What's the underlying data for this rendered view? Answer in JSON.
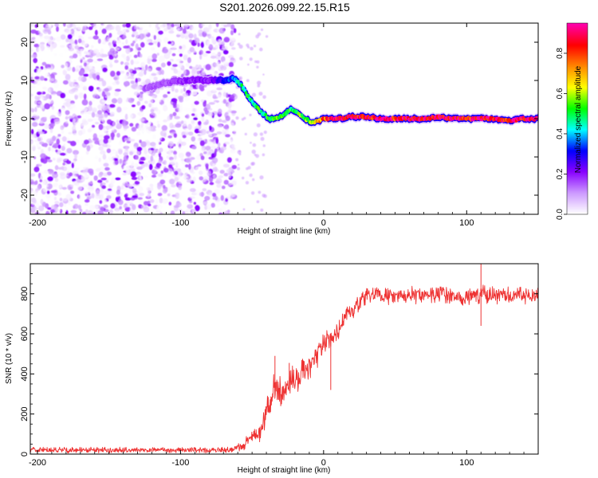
{
  "figure_title": "S201.2026.099.22.15.R15",
  "chart_data": [
    {
      "type": "heatmap",
      "title": "S201.2026.099.22.15.R15",
      "xlabel": "Height of straight line (km)",
      "ylabel": "Frequency (Hz)",
      "xlim": [
        -205,
        150
      ],
      "ylim": [
        -25,
        25
      ],
      "xticks": [
        -200,
        -100,
        0,
        100
      ],
      "xtick_labels": [
        "-200",
        "-100",
        "0",
        "100"
      ],
      "yticks": [
        -20,
        -10,
        0,
        10,
        20
      ],
      "ytick_labels": [
        "-20",
        "-10",
        "0",
        "10",
        "20"
      ],
      "noise_region_x": [
        -205,
        -62
      ],
      "signal_trace": {
        "x": [
          -125,
          -110,
          -95,
          -80,
          -70,
          -63,
          -58,
          -53,
          -48,
          -43,
          -38,
          -33,
          -28,
          -23,
          -18,
          -13,
          -8,
          -3,
          0,
          10,
          20,
          30,
          40,
          50,
          60,
          70,
          80,
          90,
          100,
          110,
          120,
          130,
          140,
          150
        ],
        "freq": [
          8,
          9.5,
          10,
          10,
          10,
          10.5,
          9,
          6,
          3.5,
          1.5,
          0,
          0,
          1,
          2.5,
          1.5,
          0,
          -1,
          -0.5,
          0,
          0,
          0.5,
          0.5,
          0,
          0,
          0,
          0,
          0.5,
          0,
          0,
          0,
          0,
          -0.5,
          0,
          0
        ],
        "amplitude": [
          0.15,
          0.15,
          0.2,
          0.2,
          0.3,
          0.35,
          0.45,
          0.5,
          0.5,
          0.5,
          0.5,
          0.55,
          0.5,
          0.5,
          0.55,
          0.55,
          0.6,
          0.7,
          0.8,
          0.9,
          0.9,
          0.85,
          0.9,
          0.85,
          0.9,
          0.85,
          0.9,
          0.9,
          0.85,
          0.9,
          0.9,
          0.85,
          0.9,
          0.9
        ]
      },
      "colorbar": {
        "label": "Normalized spectral amplitude",
        "range": [
          0.0,
          0.95
        ],
        "ticks": [
          0.0,
          0.2,
          0.4,
          0.6,
          0.8
        ],
        "tick_labels": [
          "0.0",
          "0.2",
          "0.4",
          "0.6",
          "0.8"
        ],
        "colors": [
          "#ffffff",
          "#cc99ff",
          "#8800ff",
          "#0000ff",
          "#00ffff",
          "#00ff00",
          "#ffff00",
          "#ff8800",
          "#ff0000",
          "#ff00aa"
        ]
      }
    },
    {
      "type": "line",
      "xlabel": "Height of straight line (km)",
      "ylabel": "SNR (10 * v/v)",
      "xlim": [
        -205,
        150
      ],
      "ylim": [
        0,
        950
      ],
      "xticks": [
        -200,
        -100,
        0,
        100
      ],
      "xtick_labels": [
        "-200",
        "-100",
        "0",
        "100"
      ],
      "yticks": [
        0,
        200,
        400,
        600,
        800
      ],
      "ytick_labels": [
        "0",
        "200",
        "400",
        "600",
        "800"
      ],
      "series": [
        {
          "name": "SNR",
          "color": "#ee3333",
          "x": [
            -205,
            -150,
            -100,
            -70,
            -62,
            -55,
            -50,
            -45,
            -42,
            -38,
            -34,
            -30,
            -26,
            -22,
            -18,
            -14,
            -10,
            -6,
            -2,
            2,
            6,
            10,
            15,
            20,
            25,
            30,
            35,
            40,
            50,
            60,
            70,
            80,
            90,
            100,
            110,
            120,
            130,
            140,
            150
          ],
          "values": [
            20,
            20,
            20,
            20,
            25,
            50,
            90,
            110,
            150,
            250,
            330,
            300,
            350,
            380,
            360,
            420,
            440,
            460,
            520,
            560,
            580,
            620,
            680,
            720,
            750,
            780,
            790,
            790,
            790,
            795,
            790,
            800,
            790,
            780,
            800,
            790,
            790,
            790,
            790
          ],
          "noise": [
            15,
            15,
            15,
            15,
            15,
            30,
            40,
            60,
            60,
            80,
            90,
            90,
            80,
            80,
            70,
            70,
            70,
            60,
            60,
            60,
            60,
            60,
            55,
            50,
            50,
            50,
            45,
            45,
            45,
            45,
            45,
            45,
            45,
            45,
            50,
            45,
            45,
            45,
            45
          ],
          "spikes": [
            {
              "x": 110,
              "y": 955
            },
            {
              "x": 110,
              "y": 640
            },
            {
              "x": -34,
              "y": 490
            },
            {
              "x": -24,
              "y": 455
            },
            {
              "x": 5,
              "y": 320
            }
          ]
        }
      ]
    }
  ]
}
